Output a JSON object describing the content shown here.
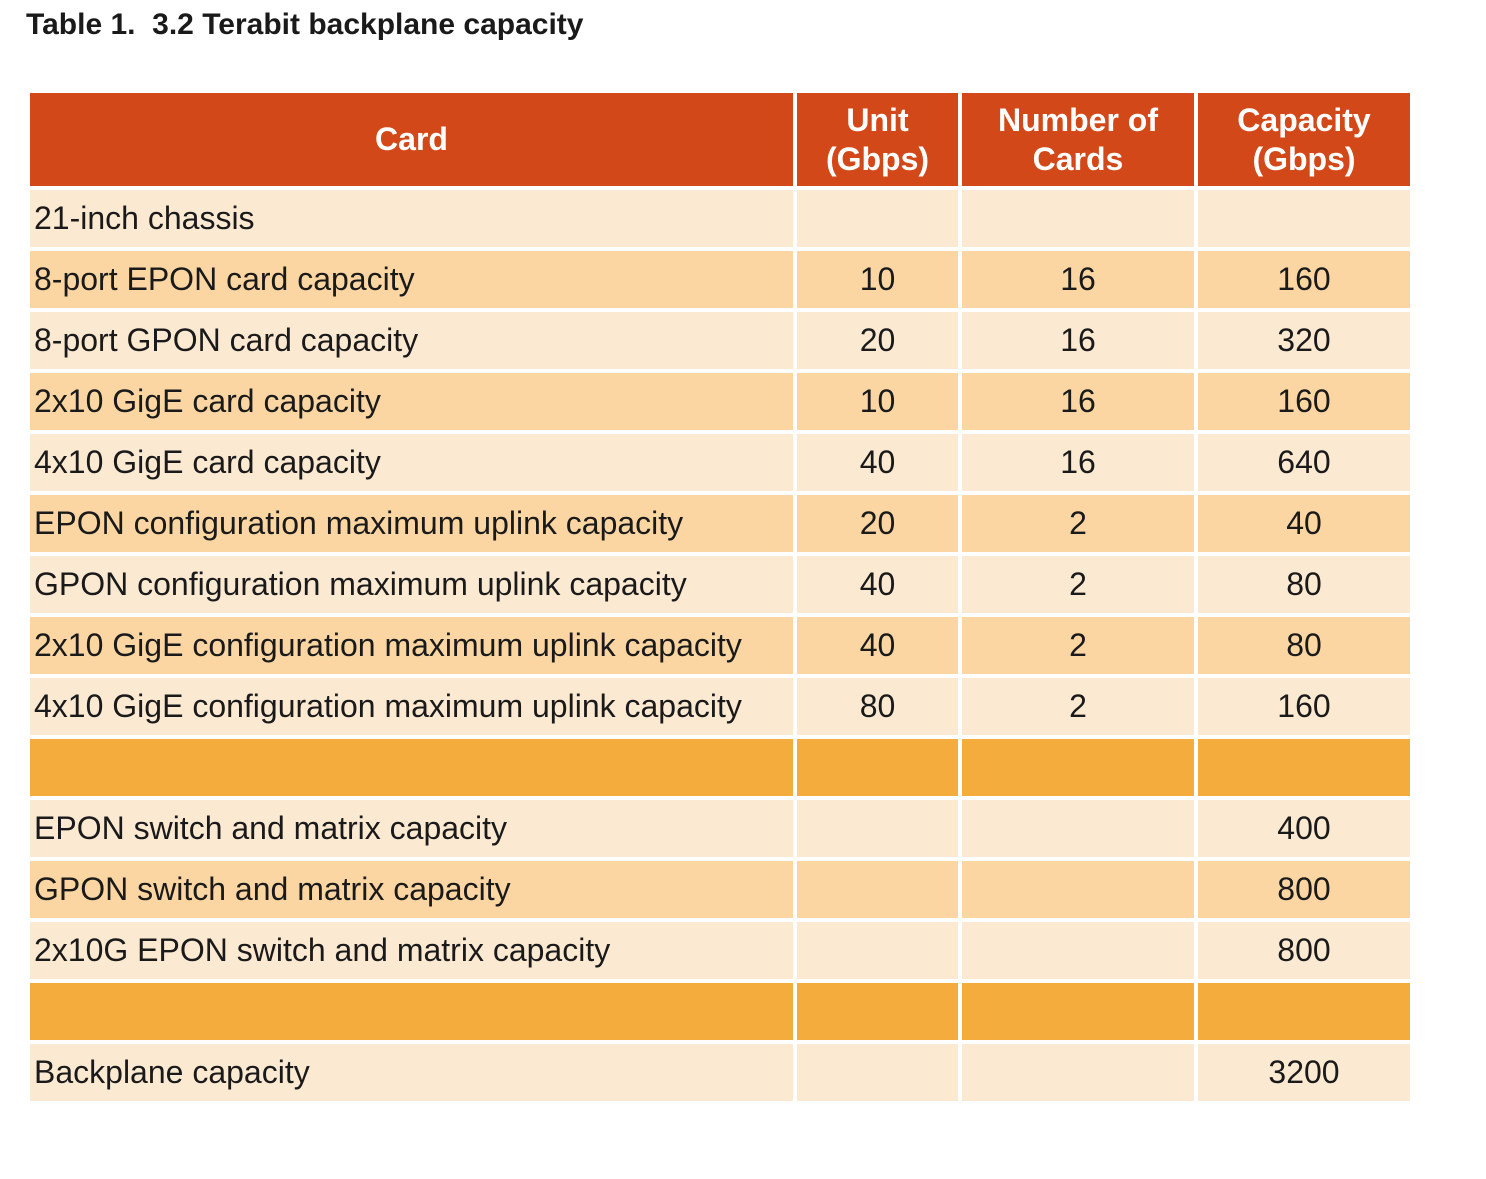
{
  "caption": "Table 1.  3.2 Terabit backplane capacity",
  "headers": {
    "card": "Card",
    "unit_line1": "Unit",
    "unit_line2": "(Gbps)",
    "num_line1": "Number of",
    "num_line2": "Cards",
    "cap_line1": "Capacity",
    "cap_line2": "(Gbps)"
  },
  "rows": [
    {
      "card": "21-inch chassis",
      "unit": "",
      "count": "",
      "capacity": ""
    },
    {
      "card": "8-port EPON card capacity",
      "unit": "10",
      "count": "16",
      "capacity": "160"
    },
    {
      "card": "8-port GPON card capacity",
      "unit": "20",
      "count": "16",
      "capacity": "320"
    },
    {
      "card": "2x10 GigE card capacity",
      "unit": "10",
      "count": "16",
      "capacity": "160"
    },
    {
      "card": "4x10 GigE card capacity",
      "unit": "40",
      "count": "16",
      "capacity": "640"
    },
    {
      "card": "EPON configuration maximum uplink capacity",
      "unit": "20",
      "count": "2",
      "capacity": "40"
    },
    {
      "card": "GPON configuration maximum uplink capacity",
      "unit": "40",
      "count": "2",
      "capacity": "80"
    },
    {
      "card": "2x10 GigE configuration maximum uplink capacity",
      "unit": "40",
      "count": "2",
      "capacity": "80"
    },
    {
      "card": "4x10 GigE configuration maximum uplink capacity",
      "unit": "80",
      "count": "2",
      "capacity": "160"
    },
    {
      "card": "",
      "unit": "",
      "count": "",
      "capacity": ""
    },
    {
      "card": "EPON switch and matrix capacity",
      "unit": "",
      "count": "",
      "capacity": "400"
    },
    {
      "card": "GPON switch and matrix capacity",
      "unit": "",
      "count": "",
      "capacity": "800"
    },
    {
      "card": "2x10G EPON switch and matrix capacity",
      "unit": "",
      "count": "",
      "capacity": "800"
    },
    {
      "card": "",
      "unit": "",
      "count": "",
      "capacity": ""
    },
    {
      "card": "Backplane capacity",
      "unit": "",
      "count": "",
      "capacity": "3200"
    }
  ],
  "colors": {
    "header": "#d34818",
    "row_light": "#fce9d2",
    "row_mid": "#fbd6a2",
    "row_accent": "#f4ac3c"
  }
}
